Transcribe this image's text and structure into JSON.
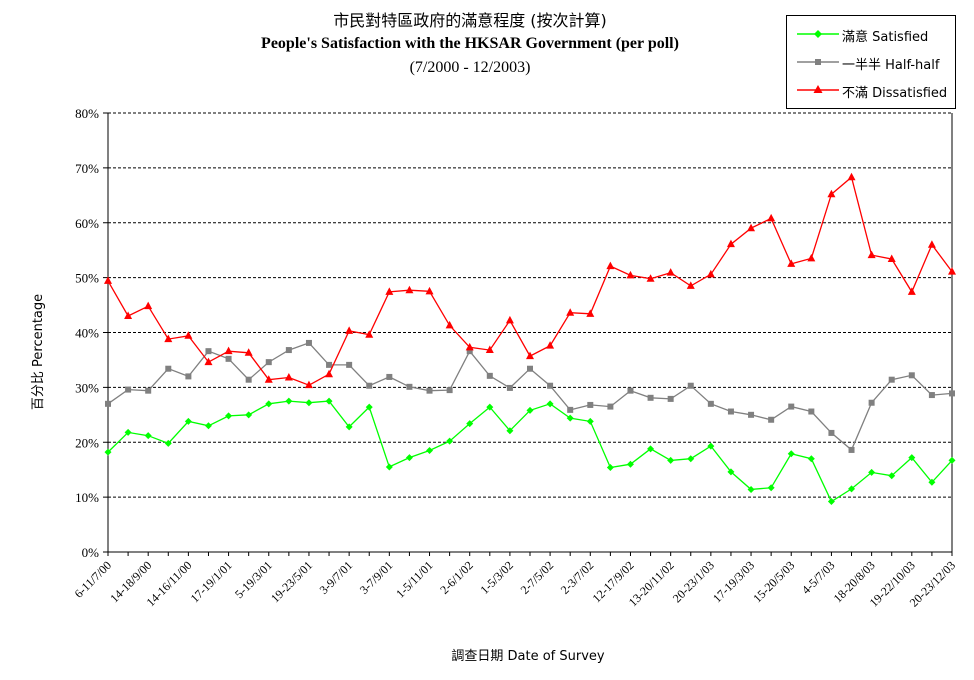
{
  "chart_data": {
    "type": "line",
    "title": "市民對特區政府的滿意程度 (按次計算)",
    "subtitle": "People's Satisfaction with the HKSAR Government (per poll)",
    "period": "(7/2000 - 12/2003)",
    "xlabel": "調查日期 Date of Survey",
    "ylabel": "百分比 Percentage",
    "ylim": [
      0,
      80
    ],
    "y_ticks": [
      "0%",
      "10%",
      "20%",
      "30%",
      "40%",
      "50%",
      "60%",
      "70%",
      "80%"
    ],
    "grid": "horizontal dashed",
    "legend_position": "top-right",
    "x_tick_labels": [
      "6-11/7/00",
      "14-18/9/00",
      "14-16/11/00",
      "17-19/1/01",
      "5-19/3/01",
      "19-23/5/01",
      "3-9/7/01",
      "3-7/9/01",
      "1-5/11/01",
      "2-6/1/02",
      "1-5/3/02",
      "2-7/5/02",
      "2-3/7/02",
      "12-17/9/02",
      "13-20/11/02",
      "20-23/1/03",
      "17-19/3/03",
      "15-20/5/03",
      "4-5/7/03",
      "18-20/8/03",
      "19-22/10/03",
      "20-23/12/03"
    ],
    "series": [
      {
        "name": "滿意 Satisfied",
        "color": "#00ff00",
        "marker": "diamond",
        "values": [
          18.2,
          21.8,
          21.2,
          19.8,
          23.8,
          23.0,
          24.8,
          25.0,
          27.0,
          27.5,
          27.2,
          27.5,
          22.8,
          26.4,
          15.5,
          17.2,
          18.5,
          20.2,
          23.4,
          26.4,
          22.1,
          25.8,
          27.0,
          24.4,
          23.8,
          15.4,
          16.0,
          18.8,
          16.7,
          17.0,
          19.3,
          14.6,
          11.4,
          11.7,
          17.9,
          17.0,
          9.2,
          11.5,
          14.5,
          13.9,
          17.2,
          12.7,
          16.7
        ]
      },
      {
        "name": "一半半 Half-half",
        "color": "#808080",
        "marker": "square",
        "values": [
          27.0,
          29.6,
          29.4,
          33.4,
          32.0,
          36.6,
          35.2,
          31.4,
          34.6,
          36.8,
          38.1,
          34.1,
          34.1,
          30.3,
          31.9,
          30.1,
          29.4,
          29.5,
          36.6,
          32.1,
          29.9,
          33.4,
          30.3,
          25.9,
          26.8,
          26.5,
          29.4,
          28.1,
          27.9,
          30.3,
          27.0,
          25.6,
          25.0,
          24.1,
          26.5,
          25.6,
          21.7,
          18.6,
          27.2,
          31.4,
          32.2,
          28.6,
          28.9
        ]
      },
      {
        "name": "不滿 Dissatisfied",
        "color": "#ff0000",
        "marker": "triangle",
        "values": [
          49.4,
          43.0,
          44.8,
          38.8,
          39.4,
          34.6,
          36.6,
          36.3,
          31.4,
          31.8,
          30.4,
          32.4,
          40.3,
          39.6,
          47.4,
          47.7,
          47.5,
          41.3,
          37.3,
          36.8,
          42.2,
          35.7,
          37.6,
          43.6,
          43.4,
          52.1,
          50.4,
          49.8,
          50.9,
          48.5,
          50.6,
          56.1,
          59.0,
          60.8,
          52.5,
          53.5,
          65.2,
          68.3,
          54.1,
          53.4,
          47.4,
          56.0,
          51.1
        ]
      }
    ]
  }
}
